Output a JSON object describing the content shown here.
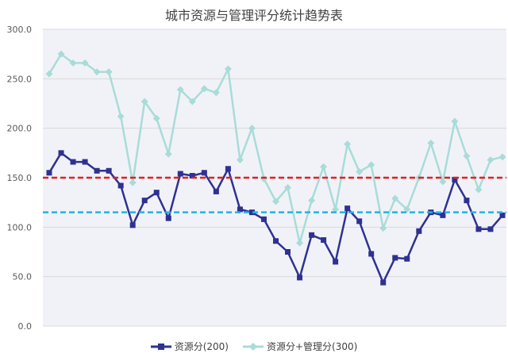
{
  "chart_data": {
    "type": "line",
    "title": "城市资源与管理评分统计趋势表",
    "xlabel": "",
    "ylabel": "",
    "ylim": [
      0,
      300
    ],
    "yticks": [
      "0.0",
      "50.0",
      "100.0",
      "150.0",
      "200.0",
      "250.0",
      "300.0"
    ],
    "grid": true,
    "legend_position": "bottom",
    "reference_lines": [
      {
        "value": 150,
        "color": "#e02020",
        "style": "dashed"
      },
      {
        "value": 115,
        "color": "#1eb4e6",
        "style": "dashed"
      }
    ],
    "series": [
      {
        "name": "资源分(200)",
        "color": "#2e3192",
        "marker": "square",
        "values": [
          155,
          175,
          166,
          166,
          157,
          157,
          142,
          102,
          127,
          135,
          109,
          154,
          152,
          155,
          136,
          159,
          118,
          115,
          108,
          86,
          75,
          49,
          92,
          87,
          65,
          119,
          106,
          73,
          44,
          69,
          68,
          96,
          115,
          112,
          148,
          127,
          98,
          98,
          112
        ]
      },
      {
        "name": "资源分+管理分(300)",
        "color": "#a8dcd8",
        "marker": "diamond",
        "values": [
          255,
          275,
          266,
          266,
          257,
          257,
          212,
          145,
          227,
          210,
          174,
          239,
          227,
          240,
          236,
          260,
          168,
          200,
          149,
          126,
          140,
          84,
          127,
          161,
          118,
          184,
          156,
          163,
          99,
          129,
          118,
          150,
          185,
          146,
          207,
          172,
          138,
          168,
          171
        ]
      }
    ]
  }
}
